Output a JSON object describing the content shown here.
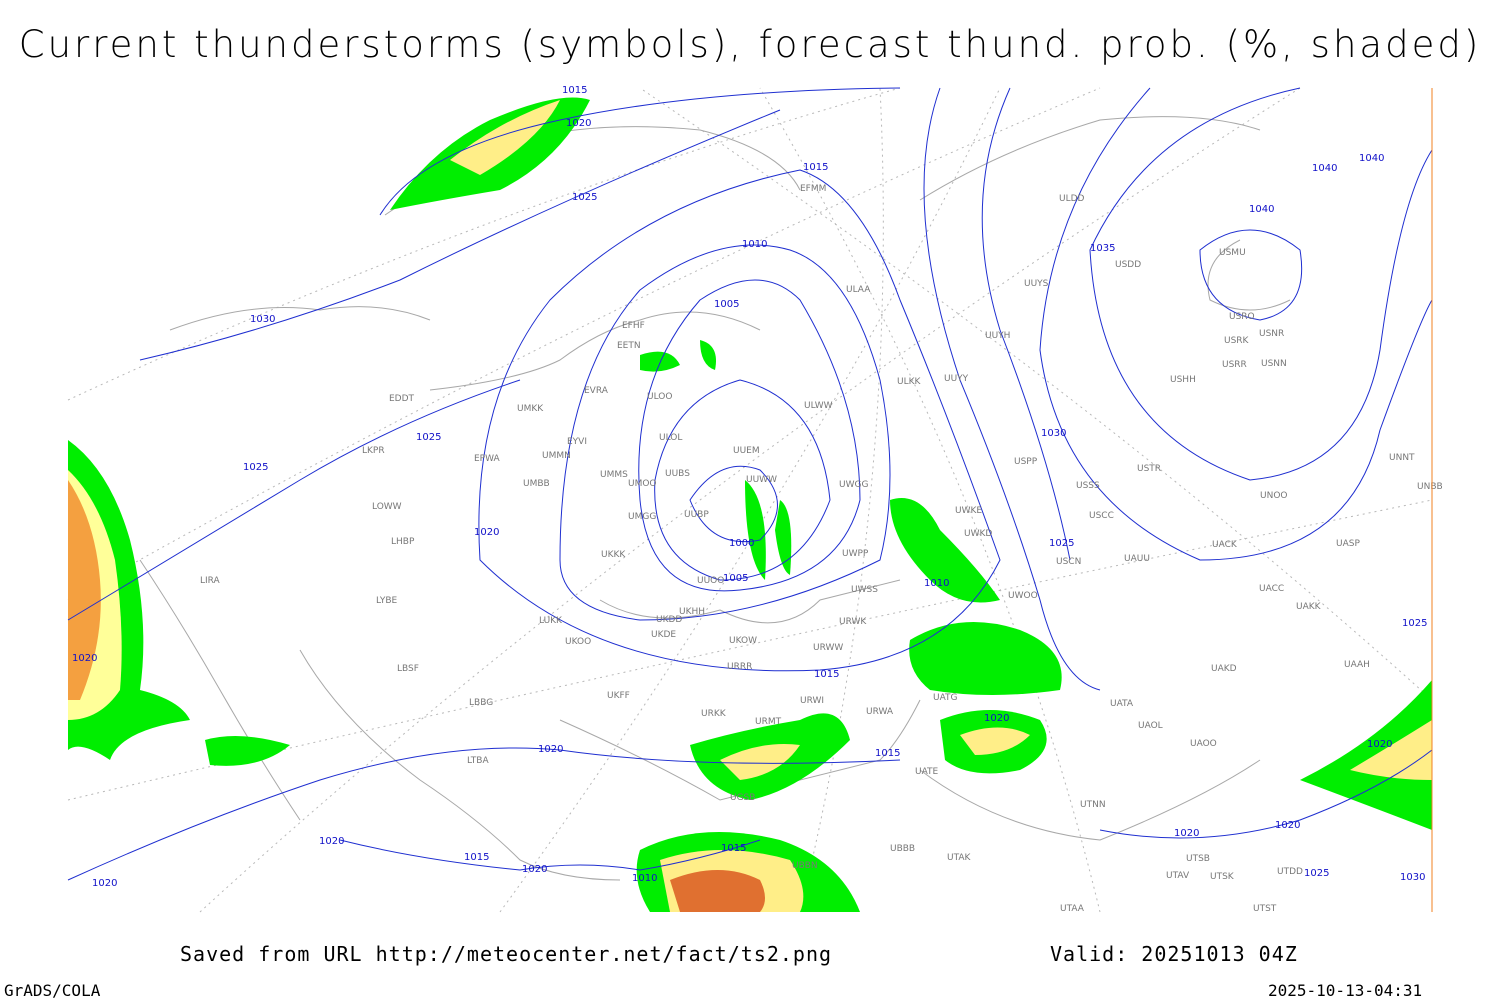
{
  "header": {
    "title": "Current thunderstorms (symbols), forecast thund. prob. (%, shaded)"
  },
  "map": {
    "isobar_labels": [
      1015,
      1020,
      1025,
      1015,
      1010,
      1005,
      1000,
      1005,
      1030,
      1025,
      1025,
      1020,
      1020,
      1015,
      1020,
      1015,
      1020,
      1010,
      1025,
      1030,
      1035,
      1040,
      1040,
      1040,
      1025,
      1020,
      1015,
      1020,
      1020,
      1015,
      1010,
      1020,
      1020,
      1020,
      1025,
      1030
    ],
    "stations": [
      "EFHF",
      "EETN",
      "EVRA",
      "ULOO",
      "ULOL",
      "UMKK",
      "EYVI",
      "UMMS",
      "UMOO",
      "UUBS",
      "UMGG",
      "UUBP",
      "UKKK",
      "UUEM",
      "UUWW",
      "UUOO",
      "ULWW",
      "ULAA",
      "UUYY",
      "ULKK",
      "UUYH",
      "UUYS",
      "ULDD",
      "USDD",
      "USMU",
      "USRO",
      "USRK",
      "USNR",
      "USRR",
      "USNN",
      "USHH",
      "USPP",
      "USTR",
      "USSS",
      "UNOO",
      "UNNT",
      "UNBB",
      "USCC",
      "UACK",
      "UASP",
      "USCN",
      "UAUU",
      "UACC",
      "UAKK",
      "UWOO",
      "UWPP",
      "UWSS",
      "UWGG",
      "UWKE",
      "UWKD",
      "URRR",
      "UKOW",
      "UKDE",
      "UKDD",
      "UKHH",
      "LUKK",
      "UKOO",
      "UKFF",
      "URKK",
      "URMT",
      "URWI",
      "URWA",
      "URWW",
      "URWK",
      "UATG",
      "UATA",
      "UAOL",
      "UAOO",
      "UAKD",
      "UAAH",
      "UATE",
      "UTNN",
      "UTSB",
      "UTAV",
      "UTSK",
      "UTDD",
      "UTST",
      "UTAK",
      "UBBB",
      "UTAA",
      "UBBN",
      "UGSB",
      "LTBA",
      "LBBG",
      "LBSF",
      "LYBE",
      "LIRA",
      "LHBP",
      "LKPR",
      "EPWA",
      "EDDT",
      "UMBB",
      "LOWW",
      "UMMN",
      "EFMM"
    ]
  },
  "footer": {
    "url": "Saved from URL http://meteocenter.net/fact/ts2.png",
    "valid": "Valid: 20251013 04Z",
    "software": "GrADS/COLA",
    "timestamp": "2025-10-13-04:31"
  }
}
